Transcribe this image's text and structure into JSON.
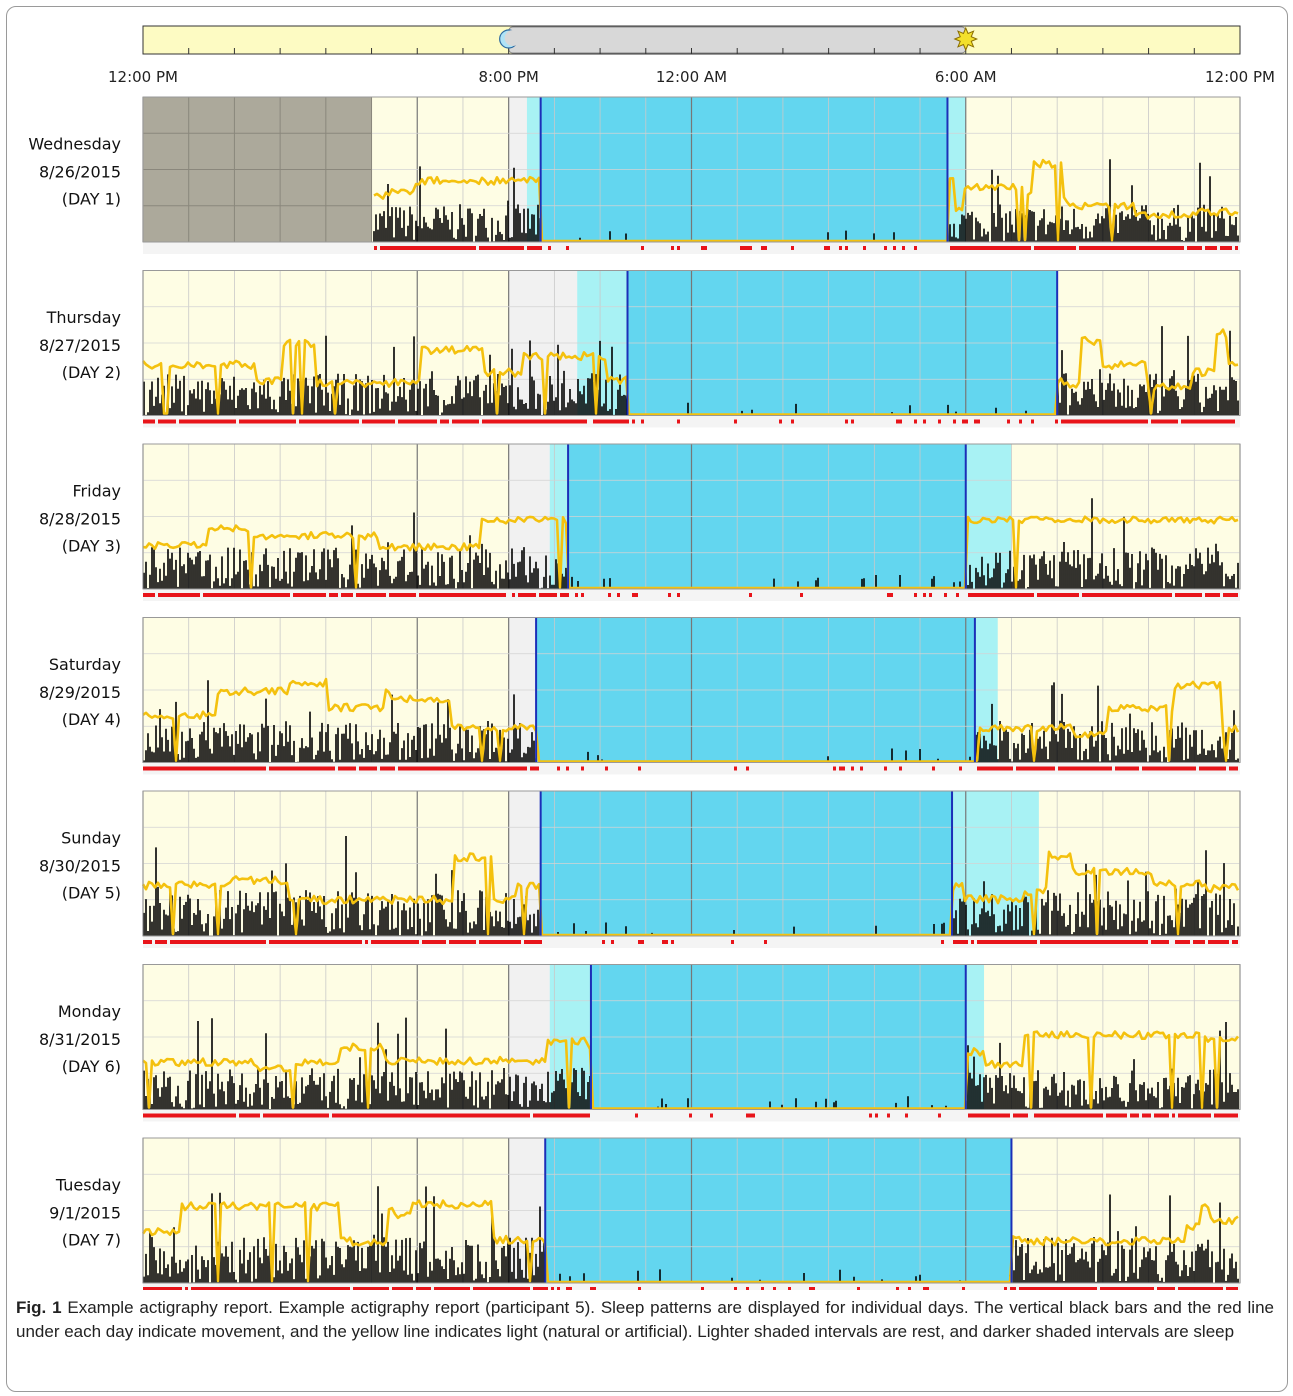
{
  "chart_data": {
    "type": "actigraphy",
    "x_axis": {
      "start_hour": 12,
      "end_hour": 36,
      "tick_labels": [
        {
          "hour": 12,
          "label": "12:00 PM"
        },
        {
          "hour": 20,
          "label": "8:00 PM"
        },
        {
          "hour": 24,
          "label": "12:00 AM"
        },
        {
          "hour": 30,
          "label": "6:00 AM"
        },
        {
          "hour": 36,
          "label": "12:00 PM"
        }
      ]
    },
    "night_band": {
      "dusk_hour": 20,
      "dawn_hour": 30,
      "moon_icon": "moon-icon",
      "sun_icon": "sun-icon"
    },
    "series": [
      {
        "name": "Movement (activity bars)",
        "color": "#000000"
      },
      {
        "name": "Movement (red line)",
        "color": "#e8141a"
      },
      {
        "name": "Light",
        "color": "#f4c10e"
      },
      {
        "name": "Rest interval",
        "color": "#99f0f4"
      },
      {
        "name": "Sleep interval",
        "color": "#56d4f0"
      }
    ],
    "days": [
      {
        "weekday": "Wednesday",
        "date": "8/26/2015",
        "day": "(DAY 1)",
        "rest": [
          20.4,
          30.0
        ],
        "sleep": [
          20.7,
          29.6
        ],
        "no_data": [
          12.0,
          17.0
        ],
        "activity_level": 0.45,
        "light_level": 0.65
      },
      {
        "weekday": "Thursday",
        "date": "8/27/2015",
        "day": "(DAY 2)",
        "rest": [
          21.5,
          32.0
        ],
        "sleep": [
          22.6,
          32.0
        ],
        "no_data": null,
        "activity_level": 0.5,
        "light_level": 0.7
      },
      {
        "weekday": "Friday",
        "date": "8/28/2015",
        "day": "(DAY 3)",
        "rest": [
          20.9,
          31.0
        ],
        "sleep": [
          21.3,
          30.0
        ],
        "no_data": null,
        "activity_level": 0.5,
        "light_level": 0.6
      },
      {
        "weekday": "Saturday",
        "date": "8/29/2015",
        "day": "(DAY 4)",
        "rest": [
          20.6,
          30.7
        ],
        "sleep": [
          20.6,
          30.2
        ],
        "no_data": null,
        "activity_level": 0.5,
        "light_level": 0.65
      },
      {
        "weekday": "Sunday",
        "date": "8/30/2015",
        "day": "(DAY 5)",
        "rest": [
          20.7,
          31.6
        ],
        "sleep": [
          20.7,
          29.7
        ],
        "no_data": null,
        "activity_level": 0.55,
        "light_level": 0.7
      },
      {
        "weekday": "Monday",
        "date": "8/31/2015",
        "day": "(DAY 6)",
        "rest": [
          20.9,
          30.4
        ],
        "sleep": [
          21.8,
          30.0
        ],
        "no_data": null,
        "activity_level": 0.5,
        "light_level": 0.65
      },
      {
        "weekday": "Tuesday",
        "date": "9/1/2015",
        "day": "(DAY 7)",
        "rest": [
          20.8,
          31.0
        ],
        "sleep": [
          20.8,
          31.0
        ],
        "no_data": null,
        "activity_level": 0.55,
        "light_level": 0.7
      }
    ]
  },
  "caption": {
    "fig_label": "Fig. 1",
    "text": " Example actigraphy report. Example actigraphy report (participant 5). Sleep patterns are displayed for individual days. The vertical black bars and the red line under each day indicate movement, and the yellow line indicates light (natural or artificial). Lighter shaded intervals are rest, and darker shaded intervals are sleep"
  }
}
